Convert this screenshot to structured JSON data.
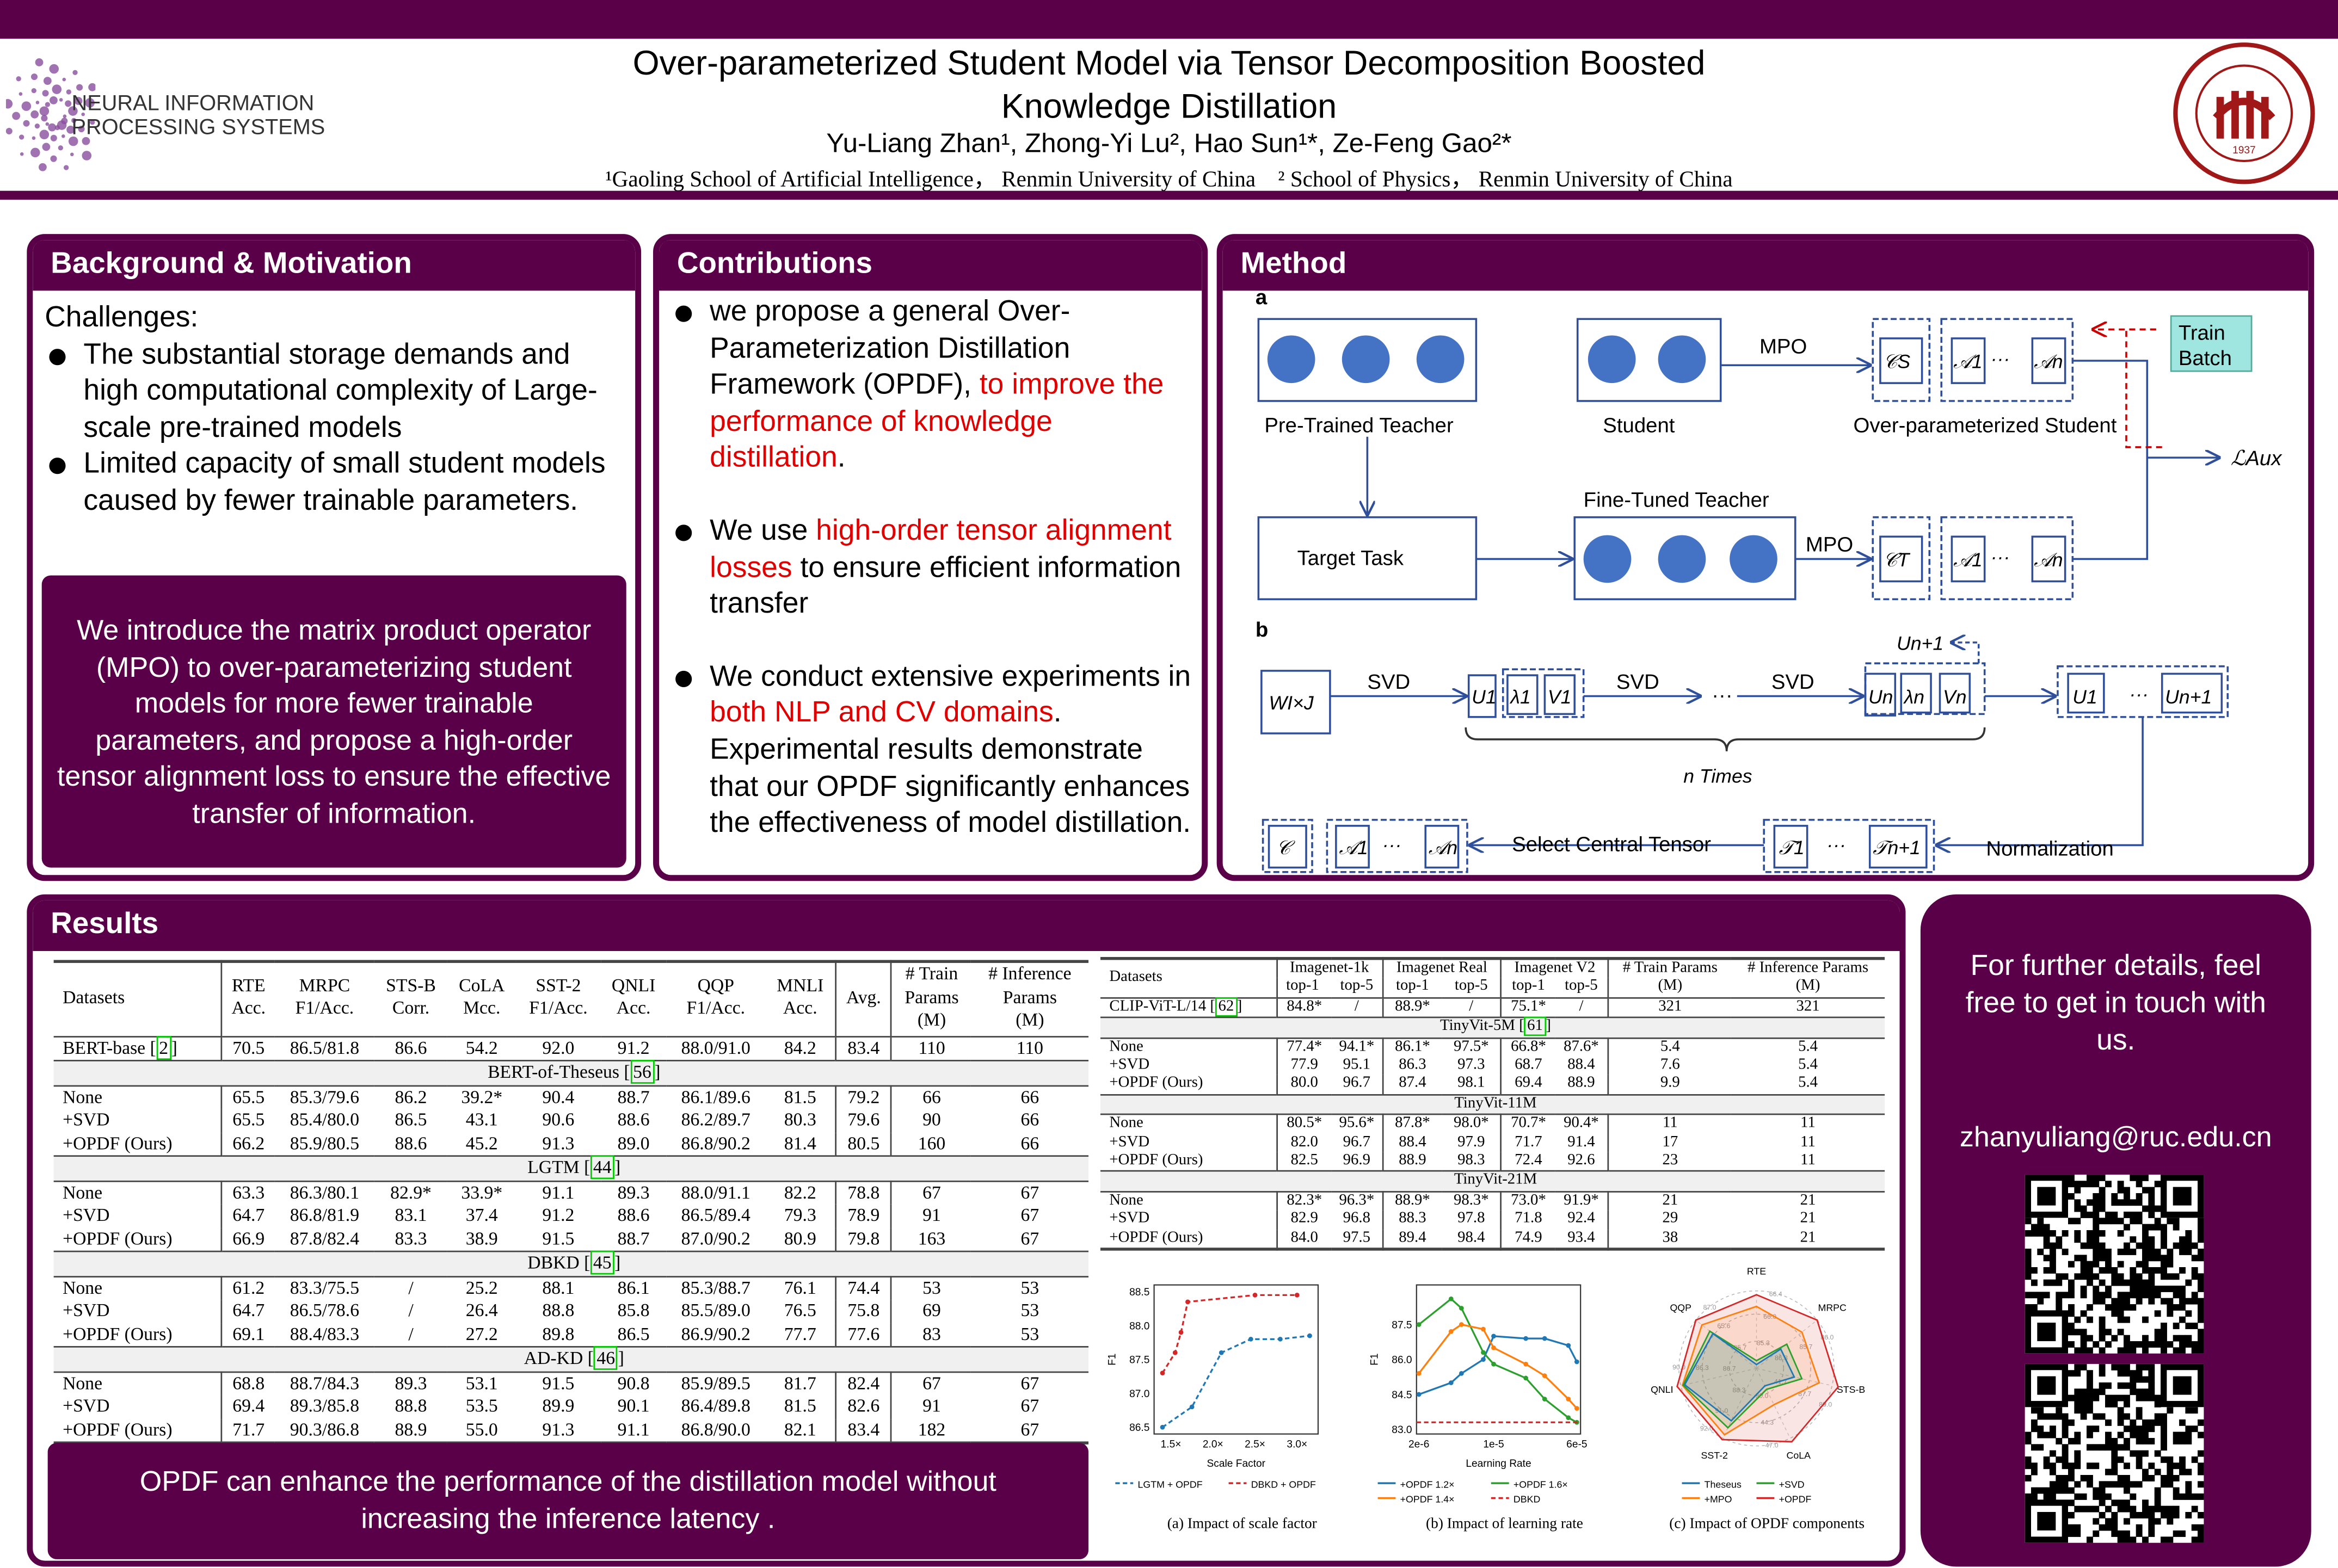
{
  "header": {
    "title_line1": "Over-parameterized Student Model via Tensor Decomposition Boosted",
    "title_line2": "Knowledge Distillation",
    "authors": "Yu-Liang Zhan¹, Zhong-Yi Lu², Hao Sun¹*, Ze-Feng Gao²*",
    "affiliations": "¹Gaoling School of Artificial Intelligence， Renmin University of China    ² School of Physics， Renmin University of China",
    "logo_left_line1": "NEURAL INFORMATION",
    "logo_left_line2": "PROCESSING SYSTEMS",
    "seal_text": "RENMIN UNIVERSITY OF CHINA 1937 中国人民大学"
  },
  "background": {
    "title": "Background & Motivation",
    "challenges_label": "Challenges:",
    "bullets": [
      "The substantial storage demands and high computational complexity of Large-scale pre-trained models",
      "Limited capacity of small student models caused by fewer trainable parameters."
    ],
    "highlight": "We introduce the matrix product operator (MPO) to over-parameterizing student models for more fewer trainable parameters, and propose a high-order tensor alignment loss to ensure the effective transfer of information."
  },
  "contributions": {
    "title": "Contributions",
    "b1_a": "we propose a general Over-Parameterization Distillation Framework (OPDF), ",
    "b1_red": "to improve the performance of knowledge distillation",
    "b1_b": ".",
    "b2_a": "We use ",
    "b2_red": "high-order tensor alignment losses",
    "b2_b": " to ensure efficient information transfer",
    "b3_a": "We conduct extensive experiments in ",
    "b3_red": "both NLP and CV domains",
    "b3_b": ". Experimental results demonstrate that our OPDF significantly enhances the effectiveness of model distillation."
  },
  "method": {
    "title": "Method",
    "label_a": "a",
    "label_b": "b",
    "pretrained_teacher": "Pre-Trained Teacher",
    "student": "Student",
    "over_student": "Over-parameterized Student",
    "mpo": "MPO",
    "train_batch_1": "Train",
    "train_batch_2": "Batch",
    "laux": "ℒAux",
    "fine_tuned_teacher": "Fine-Tuned Teacher",
    "target_task": "Target Task",
    "cs": "𝒞S",
    "ct": "𝒞T",
    "a1": "𝒜1",
    "an": "𝒜n",
    "dots": "···",
    "w": "WI×J",
    "svd": "SVD",
    "u1": "U1",
    "l1": "λ1",
    "v1": "V1",
    "un": "Un",
    "ln": "λn",
    "vn": "Vn",
    "un1": "Un+1",
    "n_times": "n Times",
    "select_central": "Select Central Tensor",
    "normalization": "Normalization",
    "c": "𝒞",
    "t1": "𝒯1",
    "tn1": "𝒯n+1"
  },
  "results": {
    "title": "Results",
    "nlp_table": {
      "headers": [
        [
          "Datasets"
        ],
        [
          "RTE",
          "Acc."
        ],
        [
          "MRPC",
          "F1/Acc."
        ],
        [
          "STS-B",
          "Corr."
        ],
        [
          "CoLA",
          "Mcc."
        ],
        [
          "SST-2",
          "F1/Acc."
        ],
        [
          "QNLI",
          "Acc."
        ],
        [
          "QQP",
          "F1/Acc."
        ],
        [
          "MNLI",
          "Acc."
        ],
        [
          "Avg."
        ],
        [
          "# Train",
          "Params",
          "(M)"
        ],
        [
          "# Inference",
          "Params",
          "(M)"
        ]
      ],
      "baseline": {
        "name": "BERT-base",
        "cite": "2",
        "cells": [
          "70.5",
          "86.5/81.8",
          "86.6",
          "54.2",
          "92.0",
          "91.2",
          "88.0/91.0",
          "84.2",
          "83.4",
          "110",
          "110"
        ]
      },
      "groups": [
        {
          "name": "BERT-of-Theseus",
          "cite": "56",
          "rows": [
            {
              "name": "None",
              "cells": [
                "65.5",
                "85.3/79.6",
                "86.2",
                "39.2*",
                "90.4",
                "88.7",
                "86.1/89.6",
                "81.5",
                "79.2",
                "66",
                "66"
              ],
              "bold": [
                7
              ]
            },
            {
              "name": "+SVD",
              "cells": [
                "65.5",
                "85.4/80.0",
                "86.5",
                "43.1",
                "90.6",
                "88.6",
                "86.2/89.7",
                "80.3",
                "79.6",
                "90",
                "66"
              ],
              "bold": []
            },
            {
              "name": "+OPDF (Ours)",
              "cells": [
                "66.2",
                "85.9/80.5",
                "88.6",
                "45.2",
                "91.3",
                "89.0",
                "86.8/90.2",
                "81.4",
                "80.5",
                "160",
                "66"
              ],
              "bold": [
                0,
                1,
                2,
                3,
                4,
                5,
                6,
                8
              ]
            }
          ]
        },
        {
          "name": "LGTM",
          "cite": "44",
          "rows": [
            {
              "name": "None",
              "cells": [
                "63.3",
                "86.3/80.1",
                "82.9*",
                "33.9*",
                "91.1",
                "89.3",
                "88.0/91.1",
                "82.2",
                "78.8",
                "67",
                "67"
              ],
              "bold": [
                5,
                6,
                7
              ]
            },
            {
              "name": "+SVD",
              "cells": [
                "64.7",
                "86.8/81.9",
                "83.1",
                "37.4",
                "91.2",
                "88.6",
                "86.5/89.4",
                "79.3",
                "78.9",
                "91",
                "67"
              ],
              "bold": []
            },
            {
              "name": "+OPDF (Ours)",
              "cells": [
                "66.9",
                "87.8/82.4",
                "83.3",
                "38.9",
                "91.5",
                "88.7",
                "87.0/90.2",
                "80.9",
                "79.8",
                "163",
                "67"
              ],
              "bold": [
                0,
                1,
                2,
                3,
                4,
                8
              ]
            }
          ]
        },
        {
          "name": "DBKD",
          "cite": "45",
          "rows": [
            {
              "name": "None",
              "cells": [
                "61.2",
                "83.3/75.5",
                "/",
                "25.2",
                "88.1",
                "86.1",
                "85.3/88.7",
                "76.1",
                "74.4",
                "53",
                "53"
              ],
              "bold": []
            },
            {
              "name": "+SVD",
              "cells": [
                "64.7",
                "86.5/78.6",
                "/",
                "26.4",
                "88.8",
                "85.8",
                "85.5/89.0",
                "76.5",
                "75.8",
                "69",
                "53"
              ],
              "bold": []
            },
            {
              "name": "+OPDF (Ours)",
              "cells": [
                "69.1",
                "88.4/83.3",
                "/",
                "27.2",
                "89.8",
                "86.5",
                "86.9/90.2",
                "77.7",
                "77.6",
                "83",
                "53"
              ],
              "bold": [
                0,
                1,
                3,
                4,
                5,
                6,
                7,
                8
              ]
            }
          ]
        },
        {
          "name": "AD-KD",
          "cite": "46",
          "rows": [
            {
              "name": "None",
              "cells": [
                "68.8",
                "88.7/84.3",
                "89.3",
                "53.1",
                "91.5",
                "90.8",
                "85.9/89.5",
                "81.7",
                "82.4",
                "67",
                "67"
              ],
              "bold": [
                2,
                4
              ]
            },
            {
              "name": "+SVD",
              "cells": [
                "69.4",
                "89.3/85.8",
                "88.8",
                "53.5",
                "89.9",
                "90.1",
                "86.4/89.8",
                "81.5",
                "82.6",
                "91",
                "67"
              ],
              "bold": []
            },
            {
              "name": "+OPDF (Ours)",
              "cells": [
                "71.7",
                "90.3/86.8",
                "88.9",
                "55.0",
                "91.3",
                "91.1",
                "86.8/90.0",
                "82.1",
                "83.4",
                "182",
                "67"
              ],
              "bold": [
                0,
                1,
                3,
                5,
                6,
                7,
                8
              ]
            }
          ]
        }
      ]
    },
    "cv_table": {
      "headers": [
        "Datasets",
        "Imagenet-1k",
        "Imagenet Real",
        "Imagenet V2",
        "# Train Params",
        "# Inference Params"
      ],
      "subheaders": [
        "top-1",
        "top-5",
        "top-1",
        "top-5",
        "top-1",
        "top-5",
        "(M)",
        "(M)"
      ],
      "baseline": {
        "name": "CLIP-ViT-L/14",
        "cite": "62",
        "cells": [
          "84.8*",
          "/",
          "88.9*",
          "/",
          "75.1*",
          "/",
          "321",
          "321"
        ]
      },
      "groups": [
        {
          "name": "TinyVit-5M",
          "cite": "61",
          "rows": [
            {
              "name": "None",
              "cells": [
                "77.4*",
                "94.1*",
                "86.1*",
                "97.5*",
                "66.8*",
                "87.6*",
                "5.4",
                "5.4"
              ],
              "bold": []
            },
            {
              "name": "+SVD",
              "cells": [
                "77.9",
                "95.1",
                "86.3",
                "97.3",
                "68.7",
                "88.4",
                "7.6",
                "5.4"
              ],
              "bold": []
            },
            {
              "name": "+OPDF (Ours)",
              "cells": [
                "80.0",
                "96.7",
                "87.4",
                "98.1",
                "69.4",
                "88.9",
                "9.9",
                "5.4"
              ],
              "bold": [
                0,
                1,
                2,
                3,
                4,
                5
              ]
            }
          ]
        },
        {
          "name": "TinyVit-11M",
          "cite": "",
          "rows": [
            {
              "name": "None",
              "cells": [
                "80.5*",
                "95.6*",
                "87.8*",
                "98.0*",
                "70.7*",
                "90.4*",
                "11",
                "11"
              ],
              "bold": []
            },
            {
              "name": "+SVD",
              "cells": [
                "82.0",
                "96.7",
                "88.4",
                "97.9",
                "71.7",
                "91.4",
                "17",
                "11"
              ],
              "bold": []
            },
            {
              "name": "+OPDF (Ours)",
              "cells": [
                "82.5",
                "96.9",
                "88.9",
                "98.3",
                "72.4",
                "92.6",
                "23",
                "11"
              ],
              "bold": [
                0,
                1,
                2,
                3,
                4,
                5
              ]
            }
          ]
        },
        {
          "name": "TinyVit-21M",
          "cite": "",
          "rows": [
            {
              "name": "None",
              "cells": [
                "82.3*",
                "96.3*",
                "88.9*",
                "98.3*",
                "73.0*",
                "91.9*",
                "21",
                "21"
              ],
              "bold": []
            },
            {
              "name": "+SVD",
              "cells": [
                "82.9",
                "96.8",
                "88.3",
                "97.8",
                "71.8",
                "92.4",
                "29",
                "21"
              ],
              "bold": []
            },
            {
              "name": "+OPDF (Ours)",
              "cells": [
                "84.0",
                "97.5",
                "89.4",
                "98.4",
                "74.9",
                "93.4",
                "38",
                "21"
              ],
              "bold": [
                0,
                1,
                2,
                3,
                4,
                5
              ]
            }
          ]
        }
      ]
    },
    "conclusion": "OPDF can enhance the performance of the distillation model without increasing the inference latency ."
  },
  "contact": {
    "text": "For further details, feel free to get in touch with us.",
    "email": "zhanyuliang@ruc.edu.cn"
  },
  "chart_data": [
    {
      "type": "line",
      "title": "(a) Impact of scale factor",
      "xlabel": "Scale Factor",
      "ylabel": "F1",
      "xlim": [
        1.3,
        3.25
      ],
      "ylim": [
        86.4,
        88.6
      ],
      "xticks": [
        1.5,
        2.0,
        2.5,
        3.0
      ],
      "xtick_labels": [
        "1.5×",
        "2.0×",
        "2.5×",
        "3.0×"
      ],
      "yticks": [
        "86.5",
        "87.0",
        "87.5",
        "88.0",
        "88.5"
      ],
      "legend": "bottom",
      "series": [
        {
          "name": "LGTM + OPDF",
          "color": "#1f77b4",
          "dash": true,
          "x": [
            1.4,
            1.75,
            2.1,
            2.45,
            2.8,
            3.15
          ],
          "y": [
            86.5,
            86.8,
            87.6,
            87.8,
            87.8,
            87.85
          ]
        },
        {
          "name": "DBKD + OPDF",
          "color": "#d62728",
          "dash": true,
          "x": [
            1.4,
            1.55,
            1.62,
            1.7,
            2.5,
            3.0
          ],
          "y": [
            87.3,
            87.6,
            87.9,
            88.35,
            88.45,
            88.45
          ]
        }
      ]
    },
    {
      "type": "line",
      "title": "(b) Impact of learning rate",
      "xlabel": "Learning Rate",
      "ylabel": "F1",
      "xscale": "log",
      "xlim": [
        1.9e-06,
        6.5e-05
      ],
      "ylim": [
        82.8,
        89.2
      ],
      "xticks": [
        2e-06,
        1e-05,
        6e-05
      ],
      "xtick_labels": [
        "2e-6",
        "1e-5",
        "6e-5"
      ],
      "yticks": [
        "83.0",
        "84.5",
        "86.0",
        "87.5"
      ],
      "legend": "bottom",
      "series": [
        {
          "name": "+OPDF 1.2×",
          "color": "#1f77b4",
          "x": [
            2e-06,
            4e-06,
            5e-06,
            8e-06,
            1e-05,
            2e-05,
            3e-05,
            5e-05,
            6e-05
          ],
          "y": [
            84.5,
            85.0,
            85.4,
            86.0,
            87.0,
            86.9,
            86.9,
            86.6,
            85.9
          ]
        },
        {
          "name": "+OPDF 1.6×",
          "color": "#2ca02c",
          "x": [
            2e-06,
            4e-06,
            5e-06,
            8e-06,
            1e-05,
            2e-05,
            3e-05,
            5e-05,
            6e-05
          ],
          "y": [
            87.5,
            88.6,
            88.2,
            86.3,
            85.8,
            85.2,
            84.3,
            83.5,
            83.3
          ]
        },
        {
          "name": "+OPDF 1.4×",
          "color": "#ff7f0e",
          "x": [
            2e-06,
            4e-06,
            5e-06,
            8e-06,
            1e-05,
            2e-05,
            3e-05,
            5e-05,
            6e-05
          ],
          "y": [
            85.4,
            87.2,
            87.5,
            87.3,
            86.5,
            85.8,
            85.3,
            84.3,
            83.9
          ]
        },
        {
          "name": "DBKD",
          "color": "#d62728",
          "dash": true,
          "x": [
            1.9e-06,
            6.5e-05
          ],
          "y": [
            83.3,
            83.3
          ]
        }
      ]
    },
    {
      "type": "radar",
      "title": "(c) Impact of OPDF components",
      "axes": [
        "RTE",
        "MRPC",
        "STS-B",
        "CoLA",
        "SST-2",
        "QNLI",
        "QQP"
      ],
      "tick_labels": [
        "66.4",
        "86.0",
        "89.0",
        "47.0",
        "92.0",
        "90.0",
        "87.0",
        "66.0",
        "85.7",
        "87.7",
        "44.3",
        "91.0",
        "86.3",
        "65.6",
        "85.3",
        "86.3",
        "41.7",
        "90.0",
        "88.3",
        "86.7",
        "85.7"
      ],
      "legend": "bottom",
      "series": [
        {
          "name": "Theseus",
          "color": "#1f77b4",
          "values": [
            0.05,
            0.4,
            0.5,
            0.25,
            0.75,
            0.95,
            0.72
          ]
        },
        {
          "name": "+SVD",
          "color": "#2ca02c",
          "values": [
            0.1,
            0.5,
            0.6,
            0.3,
            0.85,
            0.97,
            0.77
          ]
        },
        {
          "name": "+MPO",
          "color": "#ff7f0e",
          "values": [
            0.8,
            0.75,
            0.83,
            0.52,
            0.95,
            0.98,
            0.9
          ]
        },
        {
          "name": "+OPDF",
          "color": "#d62728",
          "values": [
            0.95,
            1.0,
            1.08,
            1.05,
            1.02,
            1.05,
            1.0
          ]
        }
      ]
    }
  ]
}
